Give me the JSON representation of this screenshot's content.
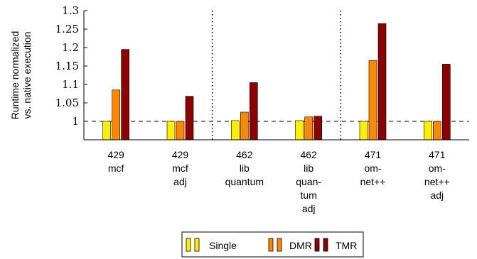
{
  "chart_data": {
    "type": "bar",
    "ylabel": [
      "Runtime normalized",
      "vs. native execution"
    ],
    "yticks": [
      "1",
      "1.05",
      "1.1",
      "1.15",
      "1.2",
      "1.25",
      "1.3"
    ],
    "ylim": [
      0.95,
      1.3
    ],
    "reference_line": 1.0,
    "separators_after_category": [
      1,
      3
    ],
    "categories": [
      [
        "429",
        "mcf"
      ],
      [
        "429",
        "mcf",
        "adj"
      ],
      [
        "462",
        "lib",
        "quantum"
      ],
      [
        "462",
        "lib",
        "quan-",
        "tum",
        "adj"
      ],
      [
        "471",
        "om-",
        "net++"
      ],
      [
        "471",
        "om-",
        "net++",
        "adj"
      ]
    ],
    "series": [
      {
        "name": "Single",
        "color": "#ffee00",
        "values": [
          1.0,
          1.0,
          1.002,
          1.002,
          1.0,
          1.0
        ]
      },
      {
        "name": "DMR",
        "color": "#ff8800",
        "values": [
          1.085,
          1.0,
          1.025,
          1.012,
          1.165,
          1.0
        ]
      },
      {
        "name": "TMR",
        "color": "#8b0000",
        "values": [
          1.195,
          1.068,
          1.105,
          1.014,
          1.265,
          1.155
        ]
      }
    ],
    "legend": [
      "Single",
      "DMR",
      "TMR"
    ],
    "legend_position": "bottom"
  }
}
